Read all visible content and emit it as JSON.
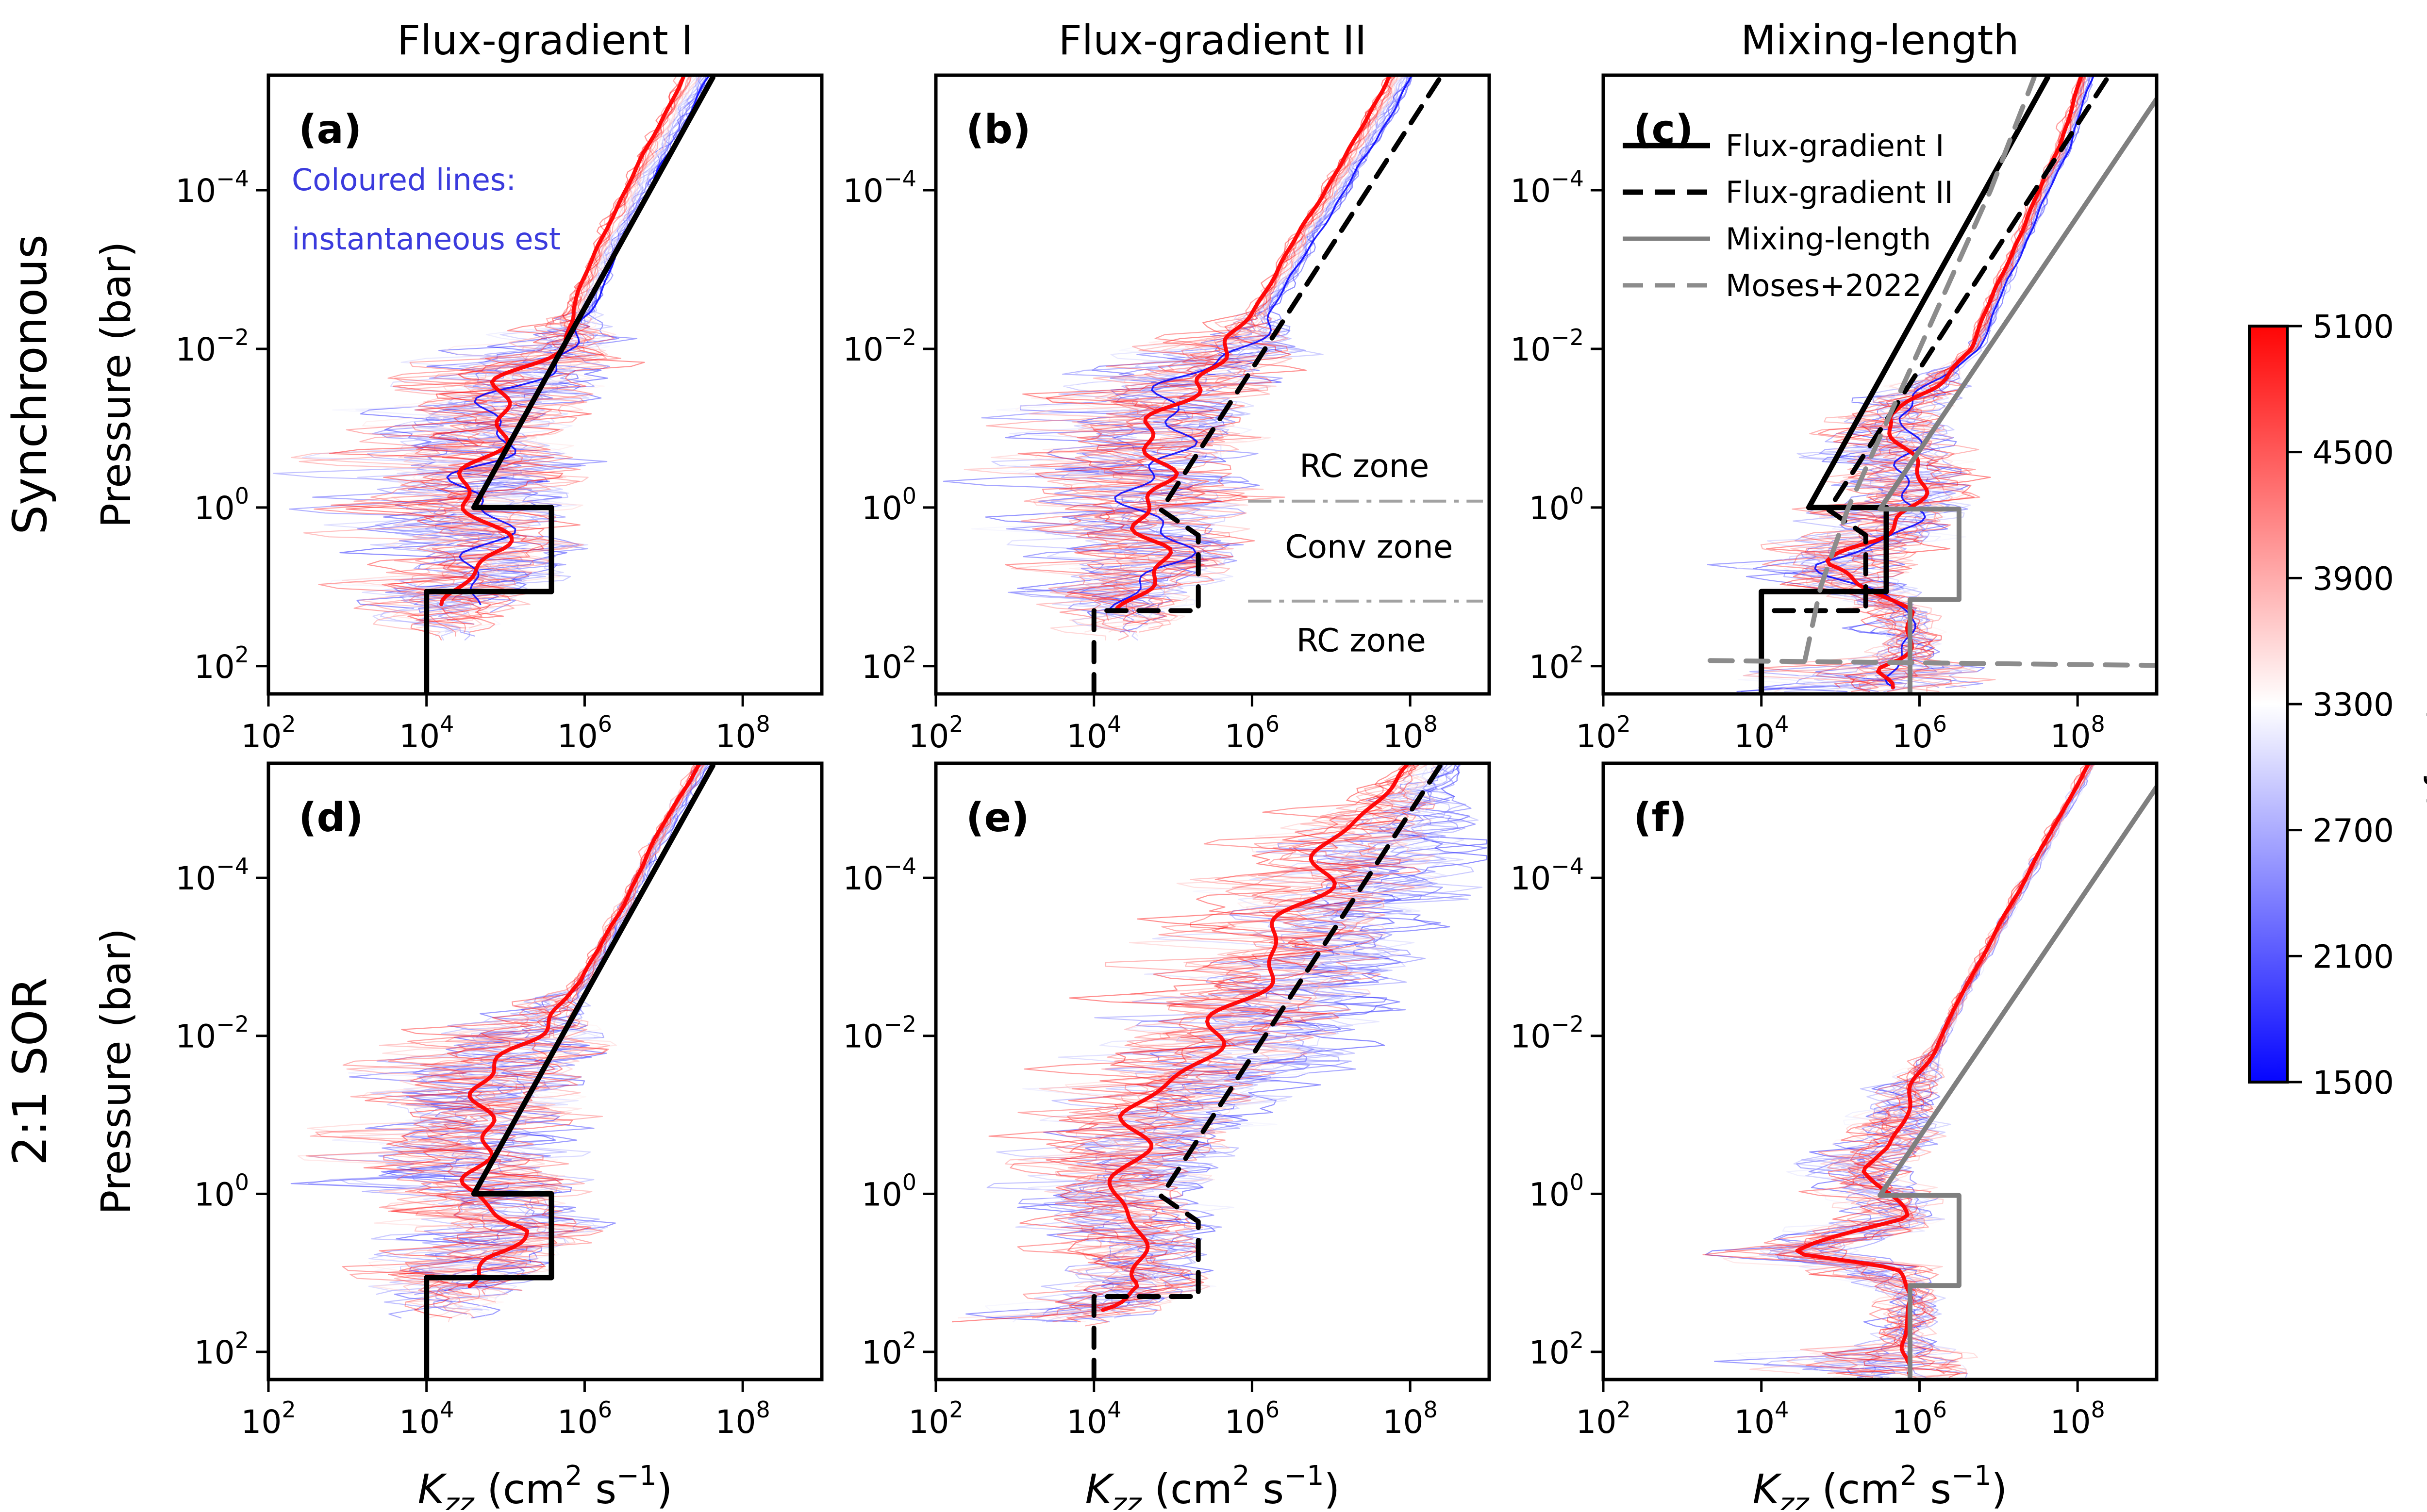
{
  "figure": {
    "column_titles": [
      "Flux-gradient I",
      "Flux-gradient II",
      "Mixing-length"
    ],
    "row_labels": [
      "Synchronous",
      "2:1 SOR"
    ],
    "ylabel": "Pressure (bar)",
    "xlabel": {
      "lead": "K",
      "sub": "zz",
      "unit_open": " (cm",
      "sup1": "2",
      "mid": " s",
      "sup2": "−1",
      "tail": ")"
    },
    "panel_letters": [
      "(a)",
      "(b)",
      "(c)",
      "(d)",
      "(e)",
      "(f)"
    ],
    "note": {
      "lines": [
        "Coloured lines:",
        "instantaneous est"
      ],
      "color": "#3b3bdd"
    },
    "legend": [
      {
        "label": "Flux-gradient I",
        "style": "solid",
        "color": "#000000"
      },
      {
        "label": "Flux-gradient II",
        "style": "dashed",
        "color": "#000000"
      },
      {
        "label": "Mixing-length",
        "style": "solid",
        "color": "#7f7f7f"
      },
      {
        "label": "Moses+2022",
        "style": "dashed",
        "color": "#8c8c8c"
      }
    ],
    "zone_labels": [
      "RC zone",
      "Conv zone",
      "RC zone"
    ],
    "colorbar_label": "Time (Day)"
  },
  "chart_data": {
    "type": "line",
    "title": "",
    "xlabel": "Kzz (cm2 s-1), log scale",
    "ylabel": "Pressure (bar), log scale, inverted",
    "x_tick_exponents": [
      2,
      4,
      6,
      8
    ],
    "y_tick_exponents": [
      -4,
      -2,
      0,
      2
    ],
    "xlim_exp": [
      2,
      9
    ],
    "ylim_exp": [
      -5.45,
      2.35
    ],
    "grid": false,
    "colorbar": {
      "label": "Time (Day)",
      "ticks": [
        5100,
        4500,
        3900,
        3300,
        2700,
        2100,
        1500
      ],
      "vmin": 1500,
      "vmax": 5100,
      "colormap": "bwr",
      "colors": {
        "low": "#0505ff",
        "mid": "#ffffff",
        "high": "#ff0505"
      }
    },
    "model_lines": {
      "fg1": {
        "name": "Flux-gradient I",
        "color": "#000000",
        "dash": null,
        "width": 11,
        "points": [
          [
            4.0,
            2.35
          ],
          [
            4.0,
            1.06
          ],
          [
            5.58,
            1.06
          ],
          [
            5.58,
            0.0
          ],
          [
            4.6,
            0.0
          ],
          [
            7.62,
            -5.42
          ]
        ]
      },
      "fg2": {
        "name": "Flux-gradient II",
        "color": "#000000",
        "dash": "40 26",
        "width": 10,
        "points": [
          [
            4.0,
            2.35
          ],
          [
            4.0,
            1.3
          ],
          [
            5.32,
            1.3
          ],
          [
            5.32,
            0.35
          ],
          [
            4.85,
            0.03
          ],
          [
            8.4,
            -5.45
          ]
        ]
      },
      "ml": {
        "name": "Mixing-length",
        "color": "#7f7f7f",
        "dash": null,
        "width": 10,
        "points": [
          [
            5.88,
            2.35
          ],
          [
            5.88,
            1.16
          ],
          [
            6.5,
            1.16
          ],
          [
            6.5,
            0.02
          ],
          [
            5.5,
            0.02
          ],
          [
            9.0,
            -5.15
          ]
        ]
      },
      "moses": {
        "name": "Moses+2022",
        "color": "#8c8c8c",
        "dash": "46 28",
        "width": 10,
        "segments": [
          [
            [
              3.35,
              1.93
            ],
            [
              8.97,
              1.99
            ]
          ],
          [
            [
              4.55,
              1.93
            ],
            [
              4.75,
              1.0
            ],
            [
              5.1,
              0.0
            ],
            [
              6.9,
              -4.0
            ],
            [
              7.45,
              -5.42
            ]
          ]
        ]
      }
    },
    "zones": {
      "boundary_logP": [
        -0.08,
        1.18
      ],
      "boundary_logx_range": [
        5.95,
        8.92
      ],
      "line_color": "#a2a2a2",
      "labels": [
        {
          "text": "RC zone",
          "logx": 7.42,
          "logP": -0.52
        },
        {
          "text": "Conv zone",
          "logx": 7.48,
          "logP": 0.5
        },
        {
          "text": "RC zone",
          "logx": 7.38,
          "logP": 1.68
        }
      ]
    },
    "panels": [
      {
        "id": "a",
        "row": 0,
        "col": 0,
        "letter": "(a)",
        "models": [
          "fg1"
        ],
        "note": true
      },
      {
        "id": "b",
        "row": 0,
        "col": 1,
        "letter": "(b)",
        "models": [
          "fg2"
        ],
        "zones": true
      },
      {
        "id": "c",
        "row": 0,
        "col": 2,
        "letter": "(c)",
        "models": [
          "fg1",
          "fg2",
          "ml",
          "moses"
        ],
        "legend": true
      },
      {
        "id": "d",
        "row": 1,
        "col": 0,
        "letter": "(d)",
        "models": [
          "fg1"
        ],
        "xlabel": true
      },
      {
        "id": "e",
        "row": 1,
        "col": 1,
        "letter": "(e)",
        "models": [
          "fg2"
        ],
        "xlabel": true
      },
      {
        "id": "f",
        "row": 1,
        "col": 2,
        "letter": "(f)",
        "models": [
          "ml"
        ],
        "xlabel": true
      }
    ],
    "ensemble": {
      "n_lines": 31,
      "t_min": 1500,
      "t_max": 5100,
      "t_step": 120,
      "thin_width": 2.2,
      "thin_alpha": 0.45,
      "panels": {
        "a": {
          "backbone": [
            [
              -5.45,
              7.42
            ],
            [
              -4.6,
              6.98
            ],
            [
              -3.6,
              6.45
            ],
            [
              -2.7,
              6.05
            ],
            [
              -2.05,
              5.8
            ],
            [
              -1.6,
              5.15
            ],
            [
              -1.1,
              4.85
            ],
            [
              -0.5,
              4.7
            ],
            [
              0.0,
              4.62
            ],
            [
              0.5,
              4.85
            ],
            [
              0.95,
              4.55
            ],
            [
              1.35,
              4.35
            ],
            [
              1.7,
              4.3
            ]
          ],
          "amp": [
            [
              -5.45,
              0.06
            ],
            [
              -2.5,
              0.08
            ],
            [
              -1.8,
              1.1
            ],
            [
              -0.2,
              1.25
            ],
            [
              0.8,
              1.05
            ],
            [
              1.25,
              0.8
            ],
            [
              1.6,
              0.45
            ]
          ],
          "shift": [
            [
              -5.45,
              -0.16
            ],
            [
              -2.3,
              -0.13
            ],
            [
              -1.9,
              -0.02
            ],
            [
              2.35,
              -0.02
            ]
          ],
          "end": [
            1.25,
            1.7
          ],
          "thick_red": true,
          "thick_blue": true
        },
        "b": {
          "backbone": [
            [
              -5.45,
              7.88
            ],
            [
              -4.6,
              7.42
            ],
            [
              -3.6,
              6.8
            ],
            [
              -2.6,
              6.2
            ],
            [
              -2.05,
              5.85
            ],
            [
              -1.6,
              5.2
            ],
            [
              -1.1,
              4.9
            ],
            [
              -0.5,
              4.75
            ],
            [
              0.0,
              4.7
            ],
            [
              0.5,
              4.9
            ],
            [
              0.95,
              4.6
            ],
            [
              1.35,
              4.45
            ],
            [
              1.7,
              4.4
            ]
          ],
          "amp": [
            [
              -5.45,
              0.06
            ],
            [
              -2.5,
              0.08
            ],
            [
              -1.8,
              1.1
            ],
            [
              -0.2,
              1.25
            ],
            [
              0.8,
              1.05
            ],
            [
              1.25,
              0.8
            ],
            [
              1.6,
              0.45
            ]
          ],
          "shift": [
            [
              -5.45,
              -0.14
            ],
            [
              -2.3,
              -0.11
            ],
            [
              -1.9,
              -0.02
            ],
            [
              2.35,
              -0.02
            ]
          ],
          "end": [
            1.3,
            1.7
          ],
          "thick_red": true,
          "thick_blue": true
        },
        "c": {
          "backbone": [
            [
              -5.45,
              8.12
            ],
            [
              -4.6,
              7.85
            ],
            [
              -3.6,
              7.4
            ],
            [
              -2.6,
              6.95
            ],
            [
              -2.0,
              6.7
            ],
            [
              -1.5,
              6.15
            ],
            [
              -1.15,
              5.65
            ],
            [
              -0.8,
              5.85
            ],
            [
              -0.4,
              5.95
            ],
            [
              0.0,
              5.85
            ],
            [
              0.4,
              5.6
            ],
            [
              0.7,
              4.9
            ],
            [
              0.95,
              5.2
            ],
            [
              1.3,
              5.8
            ],
            [
              1.8,
              5.9
            ],
            [
              2.1,
              5.75
            ],
            [
              2.35,
              5.65
            ]
          ],
          "amp": [
            [
              -5.45,
              0.05
            ],
            [
              -1.8,
              0.06
            ],
            [
              -1.4,
              0.5
            ],
            [
              -0.6,
              0.75
            ],
            [
              0.3,
              0.8
            ],
            [
              0.8,
              0.9
            ],
            [
              1.2,
              0.45
            ],
            [
              1.9,
              0.35
            ],
            [
              2.05,
              1.25
            ],
            [
              2.35,
              1.1
            ]
          ],
          "shift": [
            [
              -5.45,
              -0.07
            ],
            [
              -2.0,
              -0.05
            ],
            [
              -1.5,
              0
            ],
            [
              2.35,
              0
            ]
          ],
          "end": [
            2.3,
            2.35
          ],
          "thick_red": true,
          "thick_blue": true
        },
        "d": {
          "backbone": [
            [
              -5.45,
              7.5
            ],
            [
              -4.6,
              7.0
            ],
            [
              -3.6,
              6.5
            ],
            [
              -2.7,
              6.0
            ],
            [
              -2.1,
              5.4
            ],
            [
              -1.6,
              5.0
            ],
            [
              -1.0,
              4.7
            ],
            [
              -0.4,
              4.6
            ],
            [
              0.1,
              4.85
            ],
            [
              0.45,
              5.35
            ],
            [
              0.8,
              4.7
            ],
            [
              1.2,
              4.45
            ],
            [
              1.6,
              4.35
            ]
          ],
          "amp": [
            [
              -5.45,
              0.05
            ],
            [
              -2.6,
              0.07
            ],
            [
              -1.9,
              1.05
            ],
            [
              -0.2,
              1.25
            ],
            [
              0.5,
              0.9
            ],
            [
              1.0,
              1.0
            ],
            [
              1.5,
              0.5
            ]
          ],
          "shift": [
            [
              -5.45,
              -0.05
            ],
            [
              2.35,
              -0.03
            ]
          ],
          "end": [
            1.2,
            1.65
          ],
          "thick_red": true,
          "thick_blue": false
        },
        "e": {
          "backbone": [
            [
              -5.45,
              8.3
            ],
            [
              -5.1,
              8.05
            ],
            [
              -4.2,
              7.45
            ],
            [
              -3.2,
              6.85
            ],
            [
              -2.2,
              6.25
            ],
            [
              -1.6,
              5.6
            ],
            [
              -1.0,
              5.0
            ],
            [
              -0.5,
              4.6
            ],
            [
              0.0,
              4.45
            ],
            [
              0.5,
              4.55
            ],
            [
              0.9,
              4.65
            ],
            [
              1.15,
              4.8
            ],
            [
              1.4,
              4.2
            ],
            [
              1.65,
              3.4
            ]
          ],
          "amp": [
            [
              -5.45,
              0.1
            ],
            [
              -5.0,
              0.5
            ],
            [
              -4.3,
              1.1
            ],
            [
              -2.0,
              1.25
            ],
            [
              0.3,
              1.0
            ],
            [
              0.9,
              0.7
            ],
            [
              1.3,
              0.9
            ],
            [
              1.65,
              0.8
            ]
          ],
          "shift": [
            [
              -5.45,
              -0.3
            ],
            [
              -4.5,
              -0.55
            ],
            [
              -1.0,
              -0.45
            ],
            [
              -0.3,
              -0.1
            ],
            [
              2.35,
              0
            ]
          ],
          "end": [
            1.5,
            1.7
          ],
          "thick_red": true,
          "thick_blue": false
        },
        "f": {
          "backbone": [
            [
              -5.45,
              8.18
            ],
            [
              -4.6,
              7.7
            ],
            [
              -3.6,
              7.15
            ],
            [
              -2.6,
              6.6
            ],
            [
              -2.0,
              6.3
            ],
            [
              -1.5,
              6.05
            ],
            [
              -1.0,
              5.78
            ],
            [
              -0.6,
              5.68
            ],
            [
              -0.3,
              5.35
            ],
            [
              0.0,
              5.6
            ],
            [
              0.3,
              5.8
            ],
            [
              0.55,
              5.1
            ],
            [
              0.75,
              4.5
            ],
            [
              0.95,
              5.6
            ],
            [
              1.3,
              5.95
            ],
            [
              1.8,
              5.85
            ],
            [
              2.1,
              5.7
            ],
            [
              2.35,
              5.75
            ]
          ],
          "amp": [
            [
              -5.45,
              0.04
            ],
            [
              -1.9,
              0.05
            ],
            [
              -1.3,
              0.35
            ],
            [
              -0.5,
              0.6
            ],
            [
              0.2,
              0.55
            ],
            [
              0.8,
              0.8
            ],
            [
              1.2,
              0.35
            ],
            [
              1.9,
              0.3
            ],
            [
              2.05,
              1.2
            ],
            [
              2.35,
              1.0
            ]
          ],
          "shift": [
            [
              -5.45,
              -0.03
            ],
            [
              2.35,
              -0.02
            ]
          ],
          "end": [
            2.3,
            2.35
          ],
          "thick_red": true,
          "thick_blue": false
        }
      }
    }
  }
}
